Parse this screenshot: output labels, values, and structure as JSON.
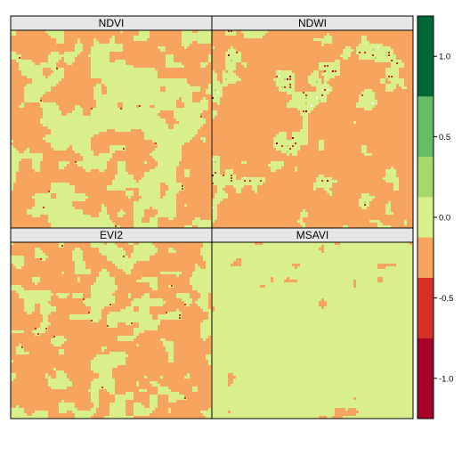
{
  "chart_data": {
    "type": "heatmap",
    "panels": [
      {
        "title": "NDVI",
        "dominant": "0.0",
        "secondary": "-0.5",
        "secondary_share": 0.32,
        "style": "patchy"
      },
      {
        "title": "NDWI",
        "dominant": "-0.5",
        "secondary": "0.0",
        "secondary_share": 0.22,
        "style": "speckled"
      },
      {
        "title": "EVI2",
        "dominant": "0.0",
        "secondary": "-0.5",
        "secondary_share": 0.36,
        "style": "patchy"
      },
      {
        "title": "MSAVI",
        "dominant": "0.0",
        "secondary": "-0.5",
        "secondary_share": 0.14,
        "style": "sparse"
      }
    ],
    "colorbar": {
      "range": [
        -1.25,
        1.25
      ],
      "bands": [
        {
          "from": -1.25,
          "to": -0.75,
          "color": "#a50026"
        },
        {
          "from": -0.75,
          "to": -0.375,
          "color": "#d73027"
        },
        {
          "from": -0.375,
          "to": -0.125,
          "color": "#f7a45e"
        },
        {
          "from": -0.125,
          "to": 0.125,
          "color": "#d9ef8b"
        },
        {
          "from": 0.125,
          "to": 0.375,
          "color": "#a6d96a"
        },
        {
          "from": 0.375,
          "to": 0.75,
          "color": "#66bd63"
        },
        {
          "from": 0.75,
          "to": 1.25,
          "color": "#006837"
        }
      ],
      "ticks": [
        {
          "value": 1.0,
          "label": "1.0"
        },
        {
          "value": 0.5,
          "label": "0.5"
        },
        {
          "value": 0.0,
          "label": "0.0"
        },
        {
          "value": -0.5,
          "label": "-0.5"
        },
        {
          "value": -1.0,
          "label": "-1.0"
        }
      ]
    },
    "colors": {
      "0.0": "#d9ef8b",
      "-0.5": "#f7a45e",
      "-0.75": "#d73027",
      "-1.0": "#a50026",
      "0.5": "#a6d96a",
      "white": "#ffffff",
      "strip": "#e6e6e6",
      "frame": "#000000"
    }
  }
}
